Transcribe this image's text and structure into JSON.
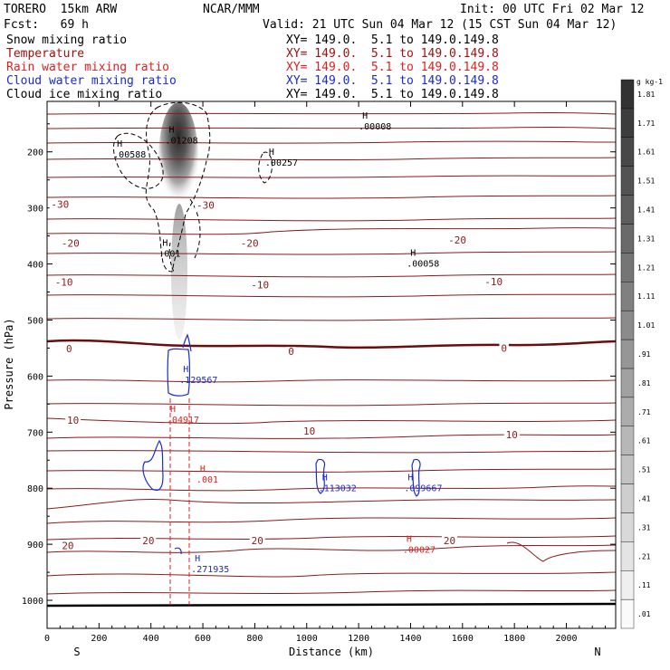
{
  "header": {
    "model": "TORERO  15km ARW",
    "org": "NCAR/MMM",
    "init": "Init: 00 UTC Fri 02 Mar 12",
    "fcst": "Fcst:   69 h",
    "valid": "Valid: 21 UTC Sun 04 Mar 12 (15 CST Sun 04 Mar 12)"
  },
  "fields": [
    {
      "name": "Snow mixing ratio",
      "xy": "XY= 149.0.  5.1 to 149.0.149.8",
      "color": "#000000"
    },
    {
      "name": "Temperature",
      "xy": "XY= 149.0.  5.1 to 149.0.149.8",
      "color": "#a01010"
    },
    {
      "name": "Rain water mixing ratio",
      "xy": "XY= 149.0.  5.1 to 149.0.149.8",
      "color": "#e02020"
    },
    {
      "name": "Cloud water mixing ratio",
      "xy": "XY= 149.0.  5.1 to 149.0.149.8",
      "color": "#1a2bd0"
    },
    {
      "name": "Cloud ice mixing ratio",
      "xy": "XY= 149.0.  5.1 to 149.0.149.8",
      "color": "#000000"
    }
  ],
  "chart_data": {
    "type": "cross-section contour",
    "xlabel": "Distance (km)",
    "ylabel": "Pressure (hPa)",
    "xlim": [
      0,
      2190
    ],
    "ylim": [
      1050,
      110
    ],
    "x_ticks": [
      0,
      200,
      400,
      600,
      800,
      1000,
      1200,
      1400,
      1600,
      1800,
      2000
    ],
    "y_ticks": [
      200,
      300,
      400,
      500,
      600,
      700,
      800,
      900,
      1000
    ],
    "x_end_labels": {
      "left": "S",
      "right": "N"
    },
    "colorbar": {
      "unit": "g kg-1",
      "levels": [
        ".01",
        ".11",
        ".21",
        ".31",
        ".41",
        ".51",
        ".61",
        ".71",
        ".81",
        ".91",
        "1.01",
        "1.11",
        "1.21",
        "1.31",
        "1.41",
        "1.51",
        "1.61",
        "1.71",
        "1.81"
      ]
    },
    "temperature_labels": [
      {
        "x": 50,
        "p": 298,
        "text": "-30"
      },
      {
        "x": 610,
        "p": 300,
        "text": "-30"
      },
      {
        "x": 90,
        "p": 368,
        "text": "-20"
      },
      {
        "x": 780,
        "p": 368,
        "text": "-20"
      },
      {
        "x": 1580,
        "p": 362,
        "text": "-20"
      },
      {
        "x": 65,
        "p": 437,
        "text": "-10"
      },
      {
        "x": 820,
        "p": 442,
        "text": "-10"
      },
      {
        "x": 1720,
        "p": 436,
        "text": "-10"
      },
      {
        "x": 85,
        "p": 556,
        "text": "0"
      },
      {
        "x": 940,
        "p": 561,
        "text": "0"
      },
      {
        "x": 1760,
        "p": 555,
        "text": "0"
      },
      {
        "x": 100,
        "p": 683,
        "text": "10"
      },
      {
        "x": 1010,
        "p": 703,
        "text": "10"
      },
      {
        "x": 1790,
        "p": 709,
        "text": "10"
      },
      {
        "x": 80,
        "p": 907,
        "text": "20"
      },
      {
        "x": 390,
        "p": 898,
        "text": "20"
      },
      {
        "x": 810,
        "p": 898,
        "text": "20"
      },
      {
        "x": 1550,
        "p": 898,
        "text": "20"
      }
    ],
    "extrema": [
      {
        "field": "snow",
        "x": 490,
        "p": 185,
        "text": ".01208"
      },
      {
        "field": "snow",
        "x": 290,
        "p": 210,
        "text": ".00588"
      },
      {
        "field": "snow",
        "x": 875,
        "p": 225,
        "text": ".00257"
      },
      {
        "field": "snow",
        "x": 1235,
        "p": 160,
        "text": ".00008"
      },
      {
        "field": "snow",
        "x": 1420,
        "p": 405,
        "text": ".00058"
      },
      {
        "field": "cloud_water",
        "x": 545,
        "p": 612,
        "text": ".129567"
      },
      {
        "field": "cloud_water",
        "x": 1080,
        "p": 805,
        "text": ".113032"
      },
      {
        "field": "cloud_water",
        "x": 1410,
        "p": 805,
        "text": ".099667"
      },
      {
        "field": "cloud_water",
        "x": 590,
        "p": 950,
        "text": ".271935"
      },
      {
        "field": "rain",
        "x": 495,
        "p": 683,
        "text": ".04917"
      },
      {
        "field": "rain",
        "x": 610,
        "p": 790,
        "text": ".001"
      },
      {
        "field": "rain",
        "x": 1405,
        "p": 915,
        "text": ".00027"
      },
      {
        "field": "cloud_ice",
        "x": 465,
        "p": 387,
        "text": ".001"
      }
    ]
  }
}
